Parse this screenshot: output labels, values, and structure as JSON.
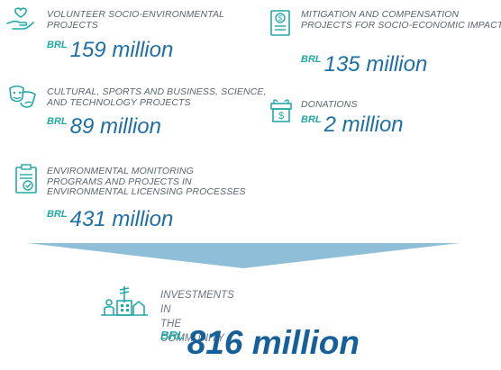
{
  "items": [
    {
      "category": [
        "VOLUNTEER SOCIO-ENVIRONMENTAL",
        "PROJECTS"
      ],
      "currency": "BRL",
      "amount": "159 million",
      "icon": "hand-heart-icon"
    },
    {
      "category": [
        "MITIGATION AND COMPENSATION",
        "PROJECTS FOR SOCIO-ECONOMIC IMPACTS"
      ],
      "currency": "BRL",
      "amount": "135 million",
      "icon": "money-document-icon"
    },
    {
      "category": [
        "CULTURAL, SPORTS AND BUSINESS, SCIENCE,",
        "AND TECHNOLOGY PROJECTS"
      ],
      "currency": "BRL",
      "amount": "89 million",
      "icon": "theater-masks-icon"
    },
    {
      "category": [
        "DONATIONS"
      ],
      "currency": "BRL",
      "amount": "2 million",
      "icon": "gift-dollar-icon"
    },
    {
      "category": [
        "ENVIRONMENTAL MONITORING",
        "PROGRAMS AND PROJECTS IN",
        "ENVIRONMENTAL LICENSING PROCESSES"
      ],
      "currency": "BRL",
      "amount": "431 million",
      "icon": "clipboard-check-icon"
    }
  ],
  "total": {
    "category": [
      "INVESTMENTS IN",
      "THE COMMUNITY"
    ],
    "currency": "BRL",
    "amount": "816 million",
    "icon": "community-buildings-icon"
  },
  "colors": {
    "teal": "#23a8a8",
    "blue": "#1f6fa6",
    "arrow": "#8fbfd8",
    "label": "#5a6470"
  }
}
